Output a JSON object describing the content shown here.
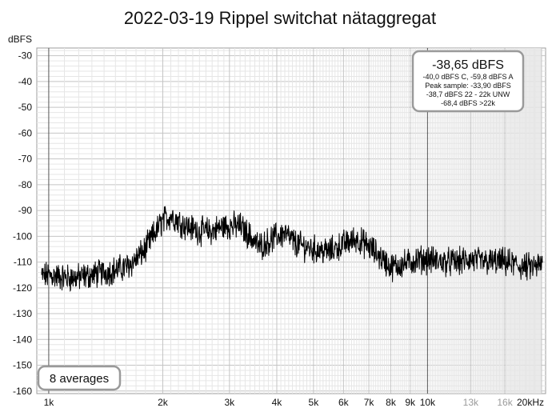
{
  "chart_data": {
    "type": "line",
    "title": "2022-03-19 Rippel switchat nätaggregat",
    "ylabel": "dBFS",
    "xunit_tick": "20kHz",
    "x_scale": "log",
    "xlim": [
      930,
      20500
    ],
    "ylim": [
      -161,
      -27
    ],
    "grid": true,
    "y_ticks": [
      -30,
      -40,
      -50,
      -60,
      -70,
      -80,
      -90,
      -100,
      -110,
      -120,
      -130,
      -140,
      -150,
      -160
    ],
    "x_ticks": [
      {
        "value": 1000,
        "label": "1k",
        "muted": false
      },
      {
        "value": 2000,
        "label": "2k",
        "muted": false
      },
      {
        "value": 3000,
        "label": "3k",
        "muted": false
      },
      {
        "value": 4000,
        "label": "4k",
        "muted": false
      },
      {
        "value": 5000,
        "label": "5k",
        "muted": false
      },
      {
        "value": 6000,
        "label": "6k",
        "muted": false
      },
      {
        "value": 7000,
        "label": "7k",
        "muted": false
      },
      {
        "value": 8000,
        "label": "8k",
        "muted": false
      },
      {
        "value": 9000,
        "label": "9k",
        "muted": false
      },
      {
        "value": 10000,
        "label": "10k",
        "muted": false
      },
      {
        "value": 13000,
        "label": "13k",
        "muted": true
      },
      {
        "value": 16000,
        "label": "16k",
        "muted": true
      },
      {
        "value": 20000,
        "label": "20kHz",
        "muted": false
      }
    ],
    "series": [
      {
        "color": "#000000",
        "points": [
          [
            930,
            -116
          ],
          [
            1000,
            -115
          ],
          [
            1100,
            -116
          ],
          [
            1200,
            -116
          ],
          [
            1300,
            -115
          ],
          [
            1400,
            -114
          ],
          [
            1500,
            -113
          ],
          [
            1600,
            -112
          ],
          [
            1700,
            -109
          ],
          [
            1800,
            -105
          ],
          [
            1900,
            -99
          ],
          [
            2000,
            -94
          ],
          [
            2100,
            -92
          ],
          [
            2200,
            -94
          ],
          [
            2300,
            -96
          ],
          [
            2400,
            -97
          ],
          [
            2500,
            -98
          ],
          [
            2600,
            -98
          ],
          [
            2700,
            -98
          ],
          [
            2800,
            -97
          ],
          [
            2900,
            -96
          ],
          [
            3000,
            -96
          ],
          [
            3200,
            -96
          ],
          [
            3400,
            -100
          ],
          [
            3600,
            -104
          ],
          [
            3800,
            -102
          ],
          [
            4000,
            -100
          ],
          [
            4200,
            -99
          ],
          [
            4500,
            -103
          ],
          [
            5000,
            -105
          ],
          [
            5500,
            -106
          ],
          [
            6000,
            -103
          ],
          [
            6500,
            -101
          ],
          [
            7000,
            -104
          ],
          [
            7500,
            -108
          ],
          [
            8000,
            -112
          ],
          [
            8500,
            -111
          ],
          [
            9000,
            -110
          ],
          [
            9500,
            -109
          ],
          [
            10000,
            -109
          ],
          [
            11000,
            -110
          ],
          [
            12000,
            -110
          ],
          [
            13000,
            -109
          ],
          [
            14000,
            -110
          ],
          [
            15000,
            -110
          ],
          [
            16000,
            -110
          ],
          [
            17000,
            -111
          ],
          [
            18000,
            -112
          ],
          [
            19000,
            -112
          ],
          [
            20000,
            -111
          ],
          [
            20500,
            -111
          ]
        ]
      }
    ]
  },
  "info_box": {
    "headline": "-38,65 dBFS",
    "lines": [
      "-40,0 dBFS C, -59,8 dBFS A",
      "Peak sample: -33,90 dBFS",
      "-38,7 dBFS 22 - 22k UNW",
      "-68,4 dBFS >22k"
    ]
  },
  "averages_label": "8 averages"
}
